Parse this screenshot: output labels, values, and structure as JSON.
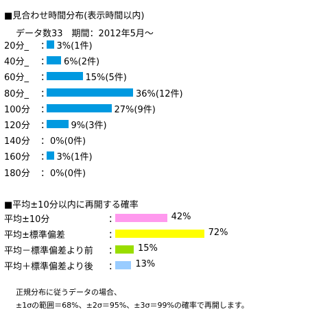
{
  "section1": {
    "title": "■見合わせ時間分布(表示時間以内)",
    "meta": "データ数33　期間：2012年5月～"
  },
  "section2": {
    "title": "■平均±10分以内に再開する確率"
  },
  "note": {
    "line1": "正規分布に従うデータの場合、",
    "line2": "±1σの範囲＝68%、±2σ＝95%、±3σ＝99%の確率で再開します。"
  },
  "chart_data": [
    {
      "type": "bar",
      "orientation": "horizontal",
      "categories": [
        "20分_",
        "40分_",
        "60分_",
        "80分_",
        "100分",
        "120分",
        "140分",
        "160分",
        "180分"
      ],
      "values": [
        3,
        6,
        15,
        36,
        27,
        9,
        0,
        3,
        0
      ],
      "counts": [
        1,
        2,
        5,
        12,
        9,
        3,
        0,
        1,
        0
      ],
      "value_labels": [
        "3%(1件)",
        "6%(2件)",
        "15%(5件)",
        "36%(12件)",
        "27%(9件)",
        "9%(3件)",
        "0%(0件)",
        "3%(1件)",
        "0%(0件)"
      ],
      "unit": "%",
      "color": "#0099e0"
    },
    {
      "type": "bar",
      "orientation": "horizontal",
      "categories": [
        "平均±10分",
        "平均±標準偏差",
        "平均－標準偏差より前",
        "平均＋標準偏差より後"
      ],
      "values": [
        42,
        72,
        15,
        13
      ],
      "value_labels": [
        "42%",
        "72%",
        "15%",
        "13%"
      ],
      "colors": [
        "#ff99ee",
        "#ffff00",
        "#99dd00",
        "#99ccff"
      ],
      "unit": "%"
    }
  ]
}
